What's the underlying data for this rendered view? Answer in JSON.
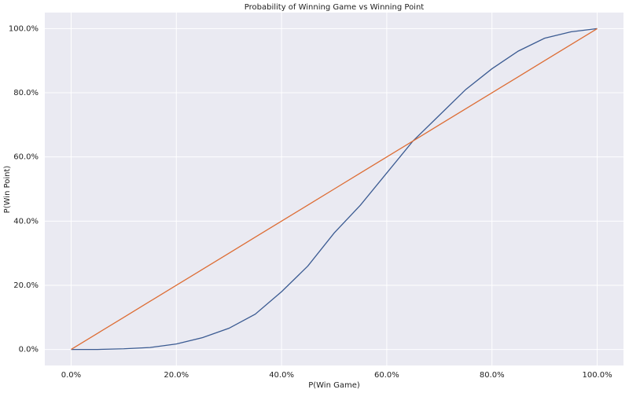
{
  "chart_data": {
    "type": "line",
    "title": "Probability of Winning Game vs Winning Point",
    "x_label": "P(Win Game)",
    "y_label": "P(Win Point)",
    "x": [
      0,
      0.05,
      0.1,
      0.15,
      0.2,
      0.25,
      0.3,
      0.35,
      0.4,
      0.45,
      0.5,
      0.55,
      0.6,
      0.65,
      0.7,
      0.75,
      0.8,
      0.85,
      0.9,
      0.95,
      1
    ],
    "series": [
      {
        "color": "#3b5b92",
        "values": [
          0,
          0,
          0.002,
          0.006,
          0.017,
          0.037,
          0.066,
          0.11,
          0.18,
          0.26,
          0.363,
          0.45,
          0.55,
          0.65,
          0.73,
          0.81,
          0.875,
          0.93,
          0.97,
          0.99,
          1
        ]
      },
      {
        "color": "#dd6d35",
        "values": [
          0,
          0.05,
          0.1,
          0.15,
          0.2,
          0.25,
          0.3,
          0.35,
          0.4,
          0.45,
          0.5,
          0.55,
          0.6,
          0.65,
          0.7,
          0.75,
          0.8,
          0.85,
          0.9,
          0.95,
          1
        ]
      }
    ],
    "xlim": [
      -0.05,
      1.05
    ],
    "ylim": [
      -0.05,
      1.05
    ],
    "xticks": [
      {
        "value": 0,
        "label": "0.0%"
      },
      {
        "value": 0.2,
        "label": "20.0%"
      },
      {
        "value": 0.4,
        "label": "40.0%"
      },
      {
        "value": 0.6,
        "label": "60.0%"
      },
      {
        "value": 0.8,
        "label": "80.0%"
      },
      {
        "value": 1,
        "label": "100.0%"
      }
    ],
    "yticks": [
      {
        "value": 0,
        "label": "0.0%"
      },
      {
        "value": 0.2,
        "label": "20.0%"
      },
      {
        "value": 0.4,
        "label": "40.0%"
      },
      {
        "value": 0.6,
        "label": "60.0%"
      },
      {
        "value": 0.8,
        "label": "80.0%"
      },
      {
        "value": 1,
        "label": "100.0%"
      }
    ],
    "grid": true,
    "background": "#eaeaf2"
  }
}
